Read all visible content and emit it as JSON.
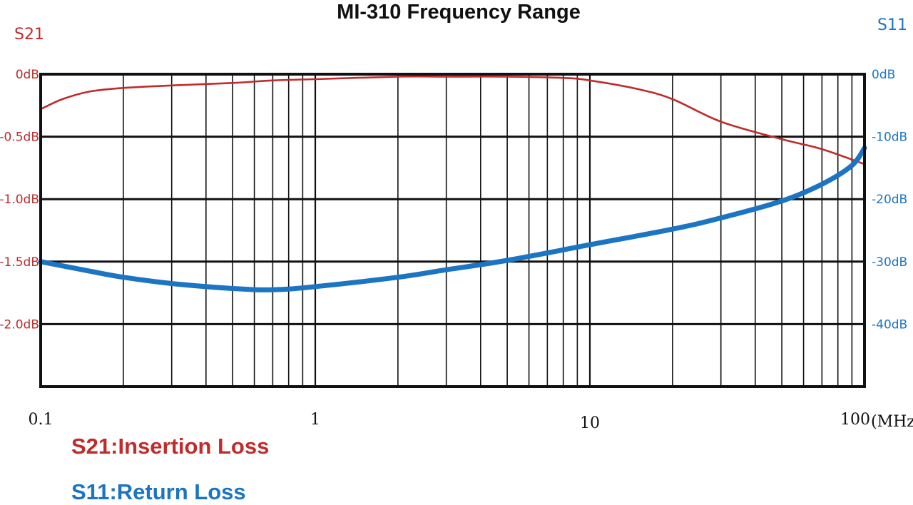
{
  "colors": {
    "s21": "#c02b2b",
    "s11": "#1c75c2",
    "grid": "#111111"
  },
  "chart_data": {
    "type": "line",
    "title": "MI-310 Frequency Range",
    "x_scale": "log",
    "xlim": [
      0.1,
      100
    ],
    "x_ticks": [
      {
        "value": 0.1,
        "label": "0.1"
      },
      {
        "value": 1,
        "label": "1"
      },
      {
        "value": 10,
        "label": "10"
      },
      {
        "value": 100,
        "label": "100"
      }
    ],
    "x_unit": "(MHz)",
    "grid": true,
    "left_axis": {
      "label": "S21",
      "ylim": [
        -2.5,
        0.0
      ],
      "ticks": [
        {
          "value": 0,
          "label": "0dB"
        },
        {
          "value": -0.5,
          "label": "-0.5dB"
        },
        {
          "value": -1.0,
          "label": "-1.0dB"
        },
        {
          "value": -1.5,
          "label": "-1.5dB"
        },
        {
          "value": -2.0,
          "label": "-2.0dB"
        }
      ]
    },
    "right_axis": {
      "label": "S11",
      "ylim": [
        -50,
        0
      ],
      "ticks": [
        {
          "value": 0,
          "label": "0dB"
        },
        {
          "value": -10,
          "label": "-10dB"
        },
        {
          "value": -20,
          "label": "-20dB"
        },
        {
          "value": -30,
          "label": "-30dB"
        },
        {
          "value": -40,
          "label": "-40dB"
        }
      ]
    },
    "series": [
      {
        "name": "S21:Insertion Loss",
        "axis": "left",
        "x": [
          0.1,
          0.12,
          0.15,
          0.2,
          0.3,
          0.5,
          0.7,
          1,
          2,
          3,
          5,
          8,
          10,
          15,
          20,
          30,
          50,
          70,
          100
        ],
        "y": [
          -0.28,
          -0.2,
          -0.14,
          -0.11,
          -0.09,
          -0.07,
          -0.05,
          -0.04,
          -0.02,
          -0.02,
          -0.02,
          -0.03,
          -0.05,
          -0.12,
          -0.2,
          -0.38,
          -0.52,
          -0.6,
          -0.72
        ]
      },
      {
        "name": "S11:Return Loss",
        "axis": "right",
        "x": [
          0.1,
          0.15,
          0.2,
          0.3,
          0.5,
          0.7,
          1,
          2,
          3,
          5,
          10,
          20,
          30,
          50,
          70,
          90,
          100
        ],
        "y": [
          -30,
          -31.5,
          -32.5,
          -33.5,
          -34.3,
          -34.5,
          -34,
          -32.5,
          -31.3,
          -29.8,
          -27.3,
          -24.8,
          -23,
          -20.3,
          -17.6,
          -14.6,
          -11.8
        ]
      }
    ]
  }
}
